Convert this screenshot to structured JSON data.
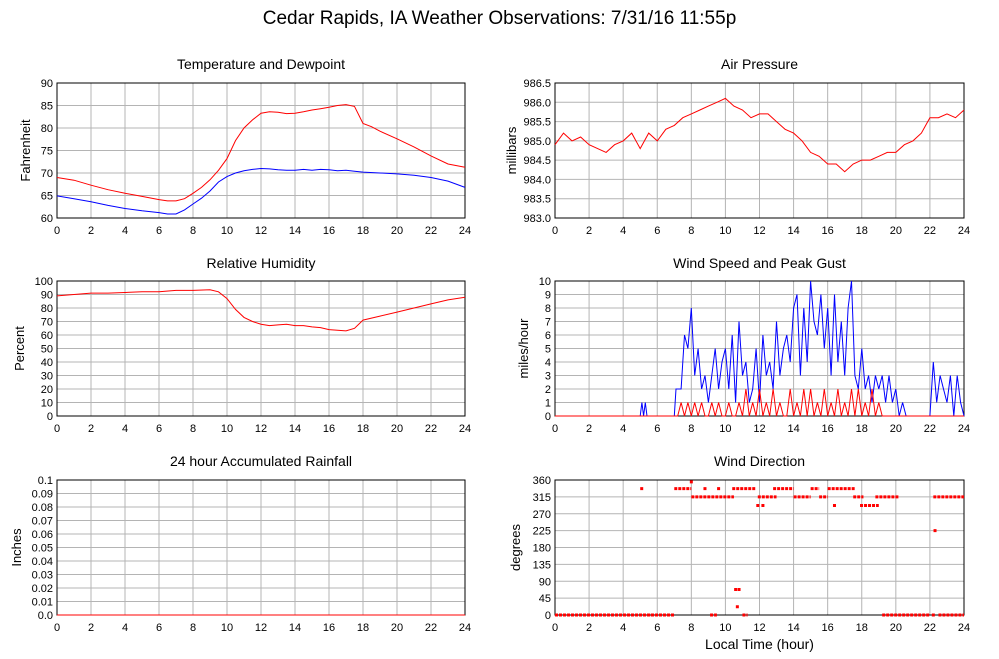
{
  "page": {
    "title": "Cedar Rapids, IA Weather Observations: 7/31/16 11:55p"
  },
  "colors": {
    "red": "#ff0000",
    "blue": "#0000ff",
    "grid": "#b4b4b4",
    "frame": "#000000"
  },
  "chart_data": [
    {
      "id": "temp",
      "type": "line",
      "title": "Temperature and Dewpoint",
      "ylabel": "Fahrenheit",
      "xlabel": "",
      "xlim": [
        0,
        24
      ],
      "ylim": [
        60,
        90
      ],
      "xticks": [
        0,
        2,
        4,
        6,
        8,
        10,
        12,
        14,
        16,
        18,
        20,
        22,
        24
      ],
      "yticks": [
        60,
        65,
        70,
        75,
        80,
        85,
        90
      ],
      "ytick_labels": [
        "60",
        "65",
        "70",
        "75",
        "80",
        "85",
        "90"
      ],
      "series": [
        {
          "color": "#ff0000",
          "x": [
            0,
            1,
            2,
            3,
            4,
            5,
            6,
            6.5,
            7,
            7.5,
            8,
            8.5,
            9,
            9.5,
            10,
            10.5,
            11,
            11.5,
            12,
            12.5,
            13,
            13.5,
            14,
            14.5,
            15,
            15.5,
            16,
            16.5,
            17,
            17.5,
            18,
            18.5,
            19,
            20,
            21,
            22,
            23,
            24
          ],
          "y": [
            69,
            68.4,
            67.3,
            66.3,
            65.5,
            64.8,
            64.1,
            63.8,
            63.8,
            64.3,
            65.5,
            66.8,
            68.5,
            70.6,
            73.2,
            77.2,
            80,
            81.8,
            83.3,
            83.6,
            83.5,
            83.2,
            83.3,
            83.6,
            84,
            84.3,
            84.6,
            85,
            85.2,
            84.8,
            81,
            80.3,
            79.3,
            77.6,
            75.8,
            73.8,
            72,
            71.3
          ]
        },
        {
          "color": "#0000ff",
          "x": [
            0,
            1,
            2,
            3,
            4,
            5,
            6,
            6.5,
            7,
            7.5,
            8,
            8.5,
            9,
            9.5,
            10,
            10.5,
            11,
            11.5,
            12,
            12.5,
            13,
            13.5,
            14,
            14.5,
            15,
            15.5,
            16,
            16.5,
            17,
            17.5,
            18,
            19,
            20,
            21,
            22,
            23,
            24
          ],
          "y": [
            64.9,
            64.3,
            63.6,
            62.8,
            62.1,
            61.6,
            61.2,
            60.9,
            60.9,
            61.8,
            63.1,
            64.4,
            66,
            68,
            69.2,
            70,
            70.5,
            70.8,
            71,
            70.9,
            70.7,
            70.6,
            70.6,
            70.8,
            70.6,
            70.8,
            70.7,
            70.5,
            70.6,
            70.4,
            70.2,
            70,
            69.8,
            69.5,
            69,
            68.2,
            66.8
          ]
        }
      ]
    },
    {
      "id": "pressure",
      "type": "line",
      "title": "Air Pressure",
      "ylabel": "millibars",
      "xlabel": "",
      "xlim": [
        0,
        24
      ],
      "ylim": [
        983.0,
        986.5
      ],
      "xticks": [
        0,
        2,
        4,
        6,
        8,
        10,
        12,
        14,
        16,
        18,
        20,
        22,
        24
      ],
      "yticks": [
        983.0,
        983.5,
        984.0,
        984.5,
        985.0,
        985.5,
        986.0,
        986.5
      ],
      "ytick_labels": [
        "983.0",
        "983.5",
        "984.0",
        "984.5",
        "985.0",
        "985.5",
        "986.0",
        "986.5"
      ],
      "series": [
        {
          "color": "#ff0000",
          "x": [
            0,
            0.5,
            1,
            1.5,
            2,
            2.5,
            3,
            3.5,
            4,
            4.5,
            5,
            5.5,
            6,
            6.5,
            7,
            7.5,
            8,
            8.5,
            9,
            9.5,
            10,
            10.5,
            11,
            11.5,
            12,
            12.5,
            13,
            13.5,
            14,
            14.5,
            15,
            15.5,
            16,
            16.5,
            17,
            17.5,
            18,
            18.5,
            19,
            19.5,
            20,
            20.5,
            21,
            21.5,
            22,
            22.5,
            23,
            23.5,
            24
          ],
          "y": [
            984.9,
            985.2,
            985.0,
            985.1,
            984.9,
            984.8,
            984.7,
            984.9,
            985.0,
            985.2,
            984.8,
            985.2,
            985.0,
            985.3,
            985.4,
            985.6,
            985.7,
            985.8,
            985.9,
            986.0,
            986.1,
            985.9,
            985.8,
            985.6,
            985.7,
            985.7,
            985.5,
            985.3,
            985.2,
            985.0,
            984.7,
            984.6,
            984.4,
            984.4,
            984.2,
            984.4,
            984.5,
            984.5,
            984.6,
            984.7,
            984.7,
            984.9,
            985.0,
            985.2,
            985.6,
            985.6,
            985.7,
            985.6,
            985.8
          ]
        }
      ]
    },
    {
      "id": "humidity",
      "type": "line",
      "title": "Relative Humidity",
      "ylabel": "Percent",
      "xlabel": "",
      "xlim": [
        0,
        24
      ],
      "ylim": [
        0,
        100
      ],
      "xticks": [
        0,
        2,
        4,
        6,
        8,
        10,
        12,
        14,
        16,
        18,
        20,
        22,
        24
      ],
      "yticks": [
        0,
        10,
        20,
        30,
        40,
        50,
        60,
        70,
        80,
        90,
        100
      ],
      "ytick_labels": [
        "0",
        "10",
        "20",
        "30",
        "40",
        "50",
        "60",
        "70",
        "80",
        "90",
        "100"
      ],
      "series": [
        {
          "color": "#ff0000",
          "x": [
            0,
            1,
            2,
            3,
            4,
            5,
            6,
            7,
            8,
            9,
            9.5,
            10,
            10.5,
            11,
            11.5,
            12,
            12.5,
            13,
            13.5,
            14,
            14.5,
            15,
            15.5,
            16,
            16.5,
            17,
            17.5,
            18,
            19,
            20,
            21,
            22,
            23,
            24
          ],
          "y": [
            89,
            90,
            91,
            91,
            91.5,
            92,
            92,
            93,
            93,
            93.5,
            92,
            87,
            79,
            73,
            70,
            68,
            67,
            67.5,
            68,
            67,
            67,
            66,
            65.5,
            64,
            63.5,
            63,
            65,
            71,
            74,
            77,
            80,
            83,
            86,
            88
          ]
        }
      ]
    },
    {
      "id": "wind",
      "type": "line",
      "title": "Wind Speed and Peak Gust",
      "ylabel": "miles/hour",
      "xlabel": "",
      "xlim": [
        0,
        24
      ],
      "ylim": [
        0,
        10
      ],
      "xticks": [
        0,
        2,
        4,
        6,
        8,
        10,
        12,
        14,
        16,
        18,
        20,
        22,
        24
      ],
      "yticks": [
        0,
        1,
        2,
        3,
        4,
        5,
        6,
        7,
        8,
        9,
        10
      ],
      "ytick_labels": [
        "0",
        "1",
        "2",
        "3",
        "4",
        "5",
        "6",
        "7",
        "8",
        "9",
        "10"
      ],
      "series": [
        {
          "color": "#0000ff",
          "x": [
            0,
            5,
            5.1,
            5.2,
            5.3,
            5.4,
            7,
            7.1,
            7.4,
            7.6,
            7.8,
            8,
            8.2,
            8.4,
            8.6,
            8.8,
            9,
            9.2,
            9.4,
            9.6,
            9.8,
            10,
            10.2,
            10.4,
            10.6,
            10.8,
            11,
            11.2,
            11.4,
            11.6,
            11.8,
            12,
            12.2,
            12.4,
            12.6,
            12.8,
            13,
            13.2,
            13.4,
            13.6,
            13.8,
            14,
            14.2,
            14.4,
            14.6,
            14.8,
            15,
            15.2,
            15.4,
            15.6,
            15.8,
            16,
            16.2,
            16.4,
            16.6,
            16.8,
            17,
            17.2,
            17.4,
            17.6,
            17.8,
            18,
            18.2,
            18.4,
            18.6,
            18.8,
            19,
            19.2,
            19.4,
            19.6,
            19.8,
            20,
            20.2,
            20.4,
            20.6,
            21,
            22,
            22.2,
            22.4,
            22.6,
            22.8,
            23,
            23.2,
            23.4,
            23.6,
            23.8,
            24
          ],
          "y": [
            0,
            0,
            1,
            0,
            1,
            0,
            0,
            2,
            2,
            6,
            5,
            8,
            3,
            5,
            2,
            3,
            1,
            3,
            5,
            2,
            4,
            5,
            2,
            6,
            1,
            7,
            3,
            4,
            1,
            2,
            5,
            1,
            6,
            3,
            4,
            2,
            7,
            3,
            5,
            6,
            4,
            8,
            9,
            3,
            8,
            4,
            10,
            7,
            6,
            9,
            5,
            8,
            3,
            9,
            4,
            7,
            3,
            8,
            10,
            3,
            2,
            5,
            2,
            3,
            1,
            3,
            2,
            3,
            1,
            3,
            1,
            2,
            0,
            1,
            0,
            0,
            0,
            4,
            1,
            3,
            2,
            1,
            3,
            0,
            3,
            1,
            0
          ]
        },
        {
          "color": "#ff0000",
          "x": [
            0,
            7.2,
            7.4,
            7.6,
            7.8,
            8,
            8.2,
            8.4,
            8.6,
            8.8,
            9,
            9.2,
            9.4,
            9.6,
            9.8,
            10,
            10.2,
            10.4,
            10.6,
            10.8,
            11,
            11.2,
            11.4,
            11.6,
            11.8,
            12,
            12.2,
            12.4,
            12.6,
            12.8,
            13,
            13.2,
            13.4,
            13.6,
            13.8,
            14,
            14.2,
            14.4,
            14.6,
            14.8,
            15,
            15.2,
            15.4,
            15.6,
            15.8,
            16,
            16.2,
            16.4,
            16.6,
            16.8,
            17,
            17.2,
            17.4,
            17.6,
            17.8,
            18,
            18.2,
            18.4,
            18.6,
            18.8,
            19,
            19.2,
            19.4,
            24
          ],
          "y": [
            0,
            0,
            1,
            0,
            1,
            0,
            1,
            0,
            1,
            0,
            0,
            1,
            0,
            1,
            0,
            0,
            1,
            0,
            0,
            1,
            0,
            2,
            0,
            1,
            0,
            2,
            0,
            1,
            0,
            2,
            0,
            1,
            0,
            0,
            2,
            0,
            1,
            0,
            2,
            0,
            2,
            0,
            1,
            0,
            2,
            0,
            1,
            0,
            2,
            0,
            1,
            0,
            2,
            0,
            2,
            0,
            1,
            0,
            2,
            0,
            1,
            0,
            0,
            0
          ]
        }
      ]
    },
    {
      "id": "rain",
      "type": "line",
      "title": "24 hour Accumulated Rainfall",
      "ylabel": "Inches",
      "xlabel": "",
      "xlim": [
        0,
        24
      ],
      "ylim": [
        0,
        0.1
      ],
      "xticks": [
        0,
        2,
        4,
        6,
        8,
        10,
        12,
        14,
        16,
        18,
        20,
        22,
        24
      ],
      "yticks": [
        0,
        0.01,
        0.02,
        0.03,
        0.04,
        0.05,
        0.06,
        0.07,
        0.08,
        0.09,
        0.1
      ],
      "ytick_labels": [
        "0.0",
        "0.01",
        "0.02",
        "0.03",
        "0.04",
        "0.05",
        "0.06",
        "0.07",
        "0.08",
        "0.09",
        "0.1"
      ],
      "series": [
        {
          "color": "#ff0000",
          "x": [
            0,
            24
          ],
          "y": [
            0,
            0
          ]
        }
      ]
    },
    {
      "id": "direction",
      "type": "scatter",
      "title": "Wind Direction",
      "ylabel": "degrees",
      "xlabel": "Local Time (hour)",
      "xlim": [
        0,
        24
      ],
      "ylim": [
        0,
        360
      ],
      "xticks": [
        0,
        2,
        4,
        6,
        8,
        10,
        12,
        14,
        16,
        18,
        20,
        22,
        24
      ],
      "yticks": [
        0,
        45,
        90,
        135,
        180,
        225,
        270,
        315,
        360
      ],
      "ytick_labels": [
        "0",
        "45",
        "90",
        "135",
        "180",
        "225",
        "270",
        "315",
        "360"
      ],
      "series": [
        {
          "color": "#ff0000",
          "segments": [
            [
              0,
              7,
              0
            ],
            [
              9.1,
              9.5,
              0
            ],
            [
              11,
              11.3,
              0
            ],
            [
              19.2,
              22,
              0
            ],
            [
              22.5,
              24,
              0
            ],
            [
              5,
              5.2,
              337
            ],
            [
              7,
              8,
              337
            ],
            [
              8,
              10.5,
              315
            ],
            [
              10.4,
              11.8,
              337
            ],
            [
              11.9,
              13,
              315
            ],
            [
              12.8,
              14,
              337
            ],
            [
              14,
              15,
              315
            ],
            [
              15,
              15.5,
              337
            ],
            [
              15.5,
              16,
              315
            ],
            [
              16,
              17.6,
              337
            ],
            [
              17.5,
              18.1,
              315
            ],
            [
              17.9,
              19,
              292
            ],
            [
              18.8,
              20.2,
              315
            ],
            [
              22.2,
              24,
              315
            ]
          ],
          "points": [
            [
              8,
              355
            ],
            [
              10.6,
              68
            ],
            [
              10.8,
              68
            ],
            [
              10.7,
              22
            ],
            [
              11.9,
              292
            ],
            [
              12.2,
              292
            ],
            [
              16.4,
              292
            ],
            [
              22.3,
              225
            ],
            [
              22.2,
              0
            ],
            [
              5.5,
              0
            ],
            [
              8.8,
              337
            ],
            [
              9.6,
              337
            ]
          ]
        }
      ]
    }
  ]
}
